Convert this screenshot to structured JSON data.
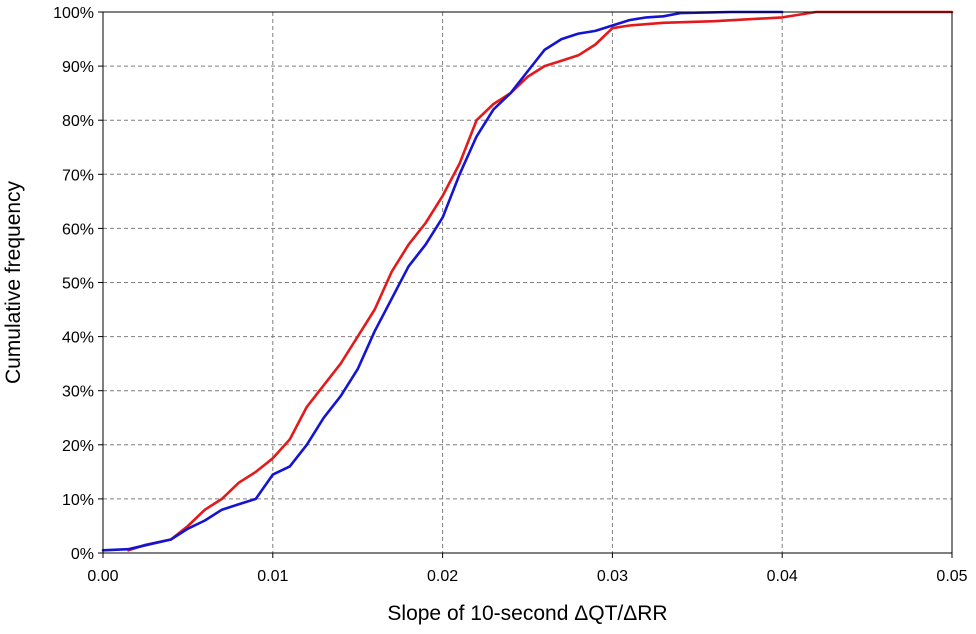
{
  "chart_data": {
    "type": "line",
    "title": "",
    "xlabel": "Slope of 10-second ΔQT/ΔRR",
    "ylabel": "Cumulative frequency",
    "xlim": [
      0,
      0.05
    ],
    "ylim": [
      0,
      100
    ],
    "x_ticks": [
      0,
      0.01,
      0.02,
      0.03,
      0.04,
      0.05
    ],
    "x_tick_labels": [
      "0.00",
      "0.01",
      "0.02",
      "0.03",
      "0.04",
      "0.05"
    ],
    "y_ticks": [
      0,
      10,
      20,
      30,
      40,
      50,
      60,
      70,
      80,
      90,
      100
    ],
    "y_tick_labels": [
      "0%",
      "10%",
      "20%",
      "30%",
      "40%",
      "50%",
      "60%",
      "70%",
      "80%",
      "90%",
      "100%"
    ],
    "grid": true,
    "legend": "none",
    "series": [
      {
        "color": "#e31a1c",
        "x": [
          0.0015,
          0.0025,
          0.004,
          0.005,
          0.006,
          0.007,
          0.008,
          0.009,
          0.01,
          0.011,
          0.012,
          0.013,
          0.014,
          0.015,
          0.016,
          0.017,
          0.018,
          0.019,
          0.02,
          0.021,
          0.022,
          0.023,
          0.024,
          0.025,
          0.026,
          0.027,
          0.028,
          0.029,
          0.03,
          0.031,
          0.033,
          0.036,
          0.04,
          0.042,
          0.045,
          0.05
        ],
        "y": [
          0.5,
          1.5,
          2.5,
          5,
          8,
          10,
          13,
          15,
          17.5,
          21,
          27,
          31,
          35,
          40,
          45,
          52,
          57,
          61,
          66,
          72,
          80,
          83,
          85,
          88,
          90,
          91,
          92,
          94,
          97,
          97.5,
          98,
          98.3,
          99,
          100,
          100,
          100
        ]
      },
      {
        "color": "#1414d2",
        "x": [
          0.0,
          0.0015,
          0.003,
          0.004,
          0.005,
          0.006,
          0.007,
          0.008,
          0.009,
          0.01,
          0.011,
          0.012,
          0.013,
          0.014,
          0.015,
          0.016,
          0.017,
          0.018,
          0.019,
          0.02,
          0.021,
          0.022,
          0.023,
          0.024,
          0.025,
          0.026,
          0.027,
          0.028,
          0.029,
          0.03,
          0.031,
          0.032,
          0.033,
          0.034,
          0.037,
          0.04
        ],
        "y": [
          0.5,
          0.7,
          1.8,
          2.5,
          4.5,
          6,
          8,
          9,
          10,
          14.5,
          16,
          20,
          25,
          29,
          34,
          41,
          47,
          53,
          57,
          62,
          70,
          77,
          82,
          85,
          89,
          93,
          95,
          96,
          96.5,
          97.5,
          98.5,
          99,
          99.2,
          99.8,
          100,
          100
        ]
      }
    ]
  }
}
